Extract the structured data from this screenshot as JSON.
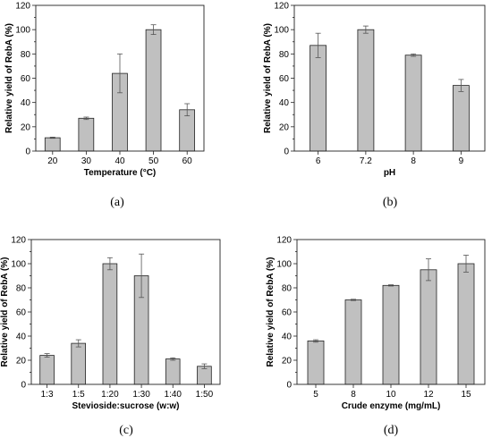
{
  "chart_data": [
    {
      "type": "bar",
      "panel_label": "(a)",
      "categories": [
        "20",
        "30",
        "40",
        "50",
        "60"
      ],
      "values": [
        11,
        27,
        64,
        100,
        34
      ],
      "errors": [
        0.5,
        1,
        16,
        4,
        5
      ],
      "xlabel": "Temperature (°C)",
      "ylabel": "Relative yield of  RebA (%)",
      "ylim": [
        0,
        120
      ],
      "yticks": [
        "0",
        "20",
        "40",
        "60",
        "80",
        "100",
        "120"
      ],
      "bar_color": "#c0c0c0",
      "grid": false
    },
    {
      "type": "bar",
      "panel_label": "(b)",
      "categories": [
        "6",
        "7.2",
        "8",
        "9"
      ],
      "values": [
        87,
        100,
        79,
        54
      ],
      "errors": [
        10,
        3,
        1,
        5
      ],
      "xlabel": "pH",
      "ylabel": "Relative yield of RebA (%)",
      "ylim": [
        0,
        120
      ],
      "yticks": [
        "0",
        "20",
        "40",
        "60",
        "80",
        "100",
        "120"
      ],
      "bar_color": "#c0c0c0",
      "grid": false
    },
    {
      "type": "bar",
      "panel_label": "(c)",
      "categories": [
        "1:3",
        "1:5",
        "1:20",
        "1:30",
        "1:40",
        "1:50"
      ],
      "values": [
        24,
        34,
        100,
        90,
        21,
        15
      ],
      "errors": [
        1.5,
        3,
        5,
        18,
        1,
        2
      ],
      "xlabel": "Stevioside:sucrose (w:w)",
      "ylabel": "Relative yield of RebA (%)",
      "ylim": [
        0,
        120
      ],
      "yticks": [
        "0",
        "20",
        "40",
        "60",
        "80",
        "100",
        "120"
      ],
      "bar_color": "#c0c0c0",
      "grid": false
    },
    {
      "type": "bar",
      "panel_label": "(d)",
      "categories": [
        "5",
        "8",
        "10",
        "12",
        "15"
      ],
      "values": [
        36,
        70,
        82,
        95,
        100
      ],
      "errors": [
        1,
        0.5,
        0.5,
        9,
        7
      ],
      "xlabel": "Crude enzyme (mg/mL)",
      "ylabel": "Relative yield of RebA (%)",
      "ylim": [
        0,
        120
      ],
      "yticks": [
        "0",
        "20",
        "40",
        "60",
        "80",
        "100",
        "120"
      ],
      "bar_color": "#c0c0c0",
      "grid": false
    }
  ]
}
